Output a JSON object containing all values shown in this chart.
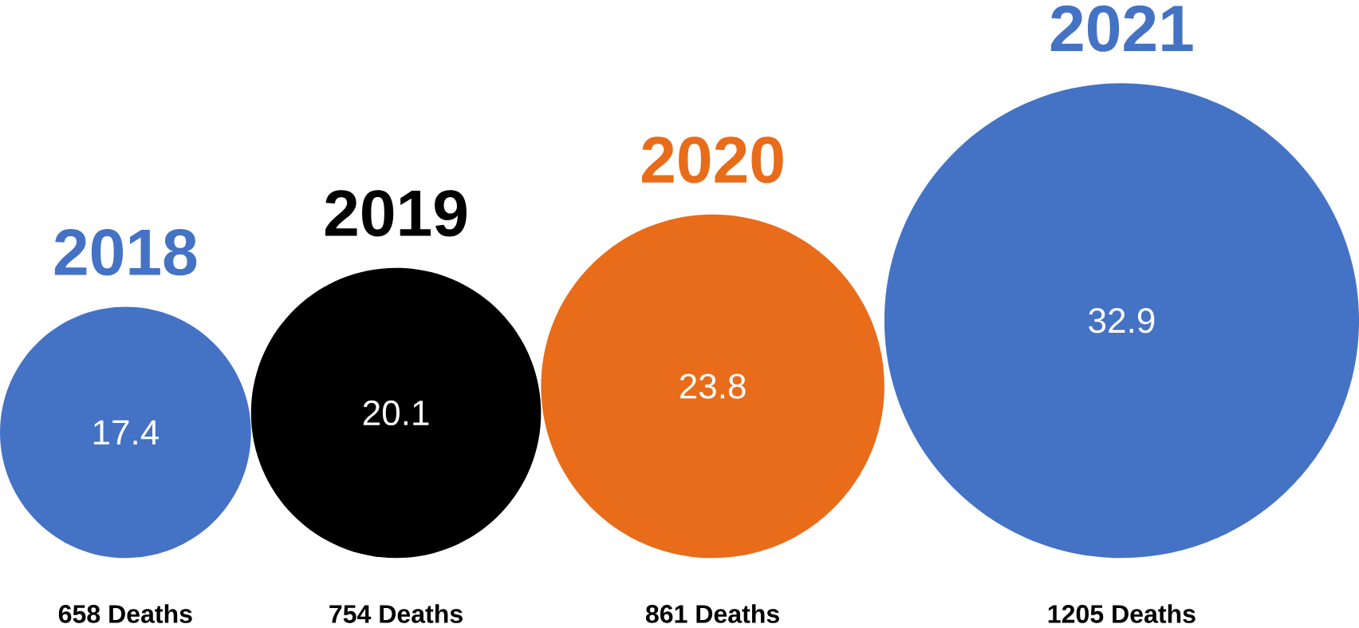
{
  "chart_data": {
    "type": "other",
    "categories": [
      "2018",
      "2019",
      "2020",
      "2021"
    ],
    "values": [
      17.4,
      20.1,
      23.8,
      32.9
    ],
    "colors": [
      "#4472c4",
      "#000000",
      "#e86c1a",
      "#4472c4"
    ],
    "data_labels": true,
    "annotations": [
      "658 Deaths",
      "754 Deaths",
      "861 Deaths",
      "1205 Deaths"
    ]
  }
}
